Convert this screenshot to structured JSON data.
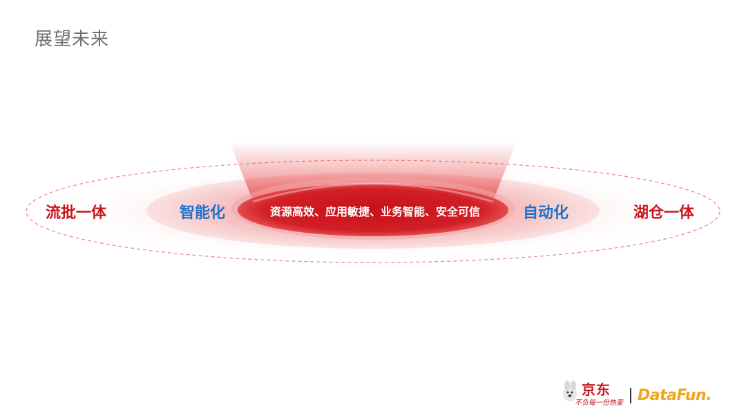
{
  "title": "展望未来",
  "diagram": {
    "core": "资源高效、应用敏捷、业务智能、安全可信",
    "middle_left": "智能化",
    "middle_right": "自动化",
    "outer_left": "流批一体",
    "outer_right": "湖仓一体"
  },
  "footer": {
    "jd_text": "京东",
    "jd_slogan": "不负每一份热爱",
    "datafun_text": "DataFun."
  },
  "colors": {
    "red": "#c8161d",
    "blue": "#1a73c8",
    "datafun": "#f2a51a"
  }
}
